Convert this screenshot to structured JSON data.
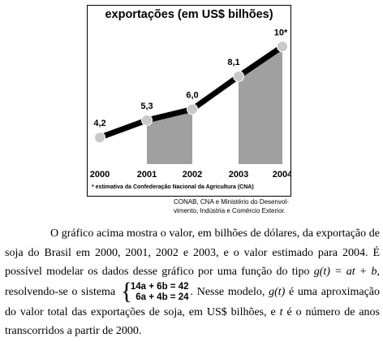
{
  "chart_data": {
    "type": "line",
    "title": "exportações (em US$ bilhões)",
    "categories": [
      "2000",
      "2001",
      "2002",
      "2003",
      "2004"
    ],
    "values": [
      4.2,
      5.3,
      6.0,
      8.1,
      10
    ],
    "value_labels": [
      "4,2",
      "5,3",
      "6,0",
      "8,1",
      "10*"
    ],
    "shaded_regions": [
      [
        "2001",
        "2002"
      ],
      [
        "2003",
        "2004"
      ]
    ],
    "ylim": [
      2.5,
      11
    ],
    "grid": false,
    "footnote": "* estimativa da Confederação Nacional da Agricultura (CNA)",
    "colors": {
      "line": "#000000",
      "marker": "#c8c8c8",
      "shade": "#a0a0a0"
    }
  },
  "source": {
    "line1": "CONAB, CNA e Ministério do Desenvol-",
    "line2": "vimento, Indústria e Comércio Exterior."
  },
  "text": {
    "p1": "O gráfico acima mostra o valor, em bilhões de dólares, da exportação de soja do Brasil em 2000, 2001, 2002 e 2003, e o valor estimado para 2004. É possível modelar os dados desse gráfico por uma função do tipo",
    "formula": "g(t) = at + b",
    "p2": ", resolvendo-se o sistema",
    "eq1": "14a + 6b = 42",
    "eq2": "6a + 4b = 24",
    "p3": ". Nesse modelo,",
    "g_t": "g(t)",
    "p4": "é uma aproximação do valor total das exportações de soja, em US$ bilhões, e",
    "t": "t",
    "p5": "é o número de anos transcorridos a partir de 2000."
  }
}
